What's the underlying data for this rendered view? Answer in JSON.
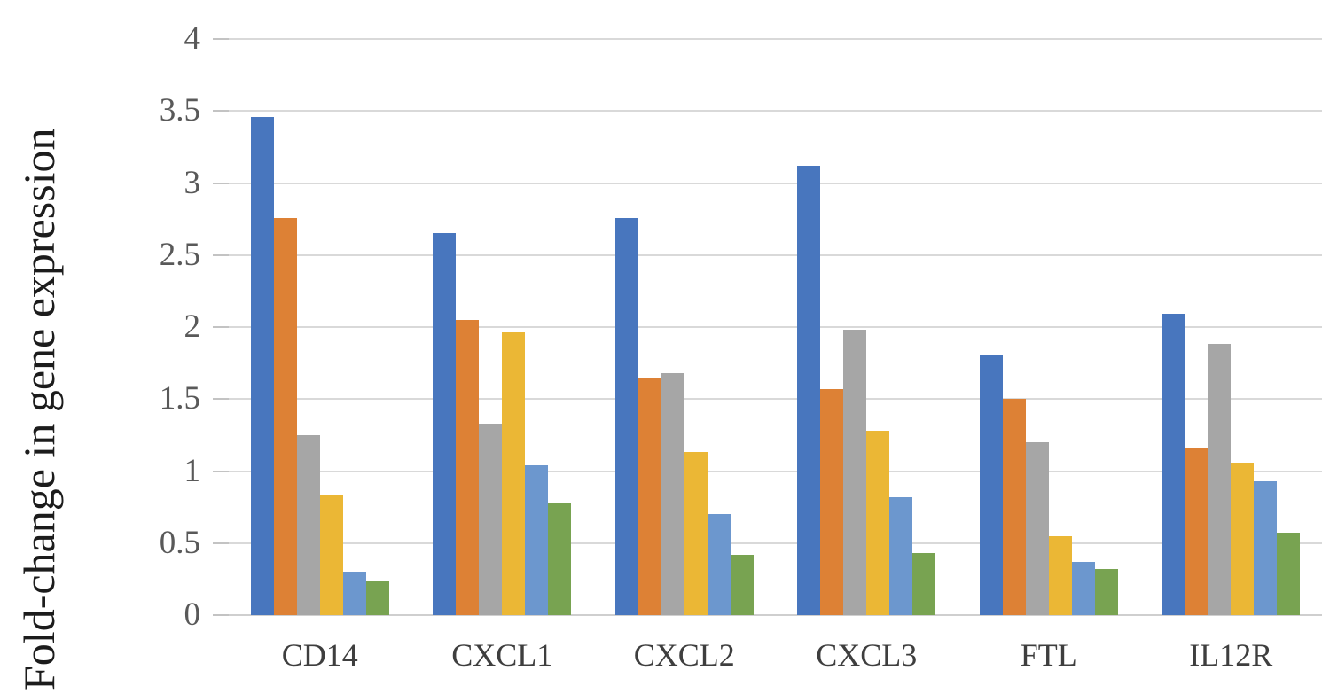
{
  "figure": {
    "y_axis_title": "Fold-change in gene expression",
    "y_tick_labels": [
      "4",
      "3.5",
      "3",
      "2.5",
      "2",
      "1.5",
      "1",
      "0.5",
      "0"
    ],
    "x_labels": [
      "CD14",
      "CXCL1",
      "CXCL2",
      "CXCL3",
      "FTL",
      "IL12R"
    ]
  },
  "chart_data": {
    "type": "bar",
    "title": "",
    "xlabel": "",
    "ylabel": "Fold-change in gene expression",
    "ylim": [
      0,
      4
    ],
    "ytick_step": 0.5,
    "grid": "horizontal",
    "legend_position": "none",
    "categories": [
      "CD14",
      "CXCL1",
      "CXCL2",
      "CXCL3",
      "FTL",
      "IL12R"
    ],
    "series": [
      {
        "name": "series-1-blue",
        "color": "#4876BE",
        "values": [
          3.46,
          2.65,
          2.76,
          3.12,
          1.8,
          2.09
        ]
      },
      {
        "name": "series-2-orange",
        "color": "#DD8135",
        "values": [
          2.76,
          2.05,
          1.65,
          1.57,
          1.5,
          1.16
        ]
      },
      {
        "name": "series-3-gray",
        "color": "#A6A6A6",
        "values": [
          1.25,
          1.33,
          1.68,
          1.98,
          1.2,
          1.88
        ]
      },
      {
        "name": "series-4-yellow",
        "color": "#EBB735",
        "values": [
          0.83,
          1.96,
          1.13,
          1.28,
          0.55,
          1.06
        ]
      },
      {
        "name": "series-5-light-blue",
        "color": "#6C97CE",
        "values": [
          0.3,
          1.04,
          0.7,
          0.82,
          0.37,
          0.93
        ]
      },
      {
        "name": "series-6-green",
        "color": "#78A351",
        "values": [
          0.24,
          0.78,
          0.42,
          0.43,
          0.32,
          0.57
        ]
      }
    ]
  }
}
